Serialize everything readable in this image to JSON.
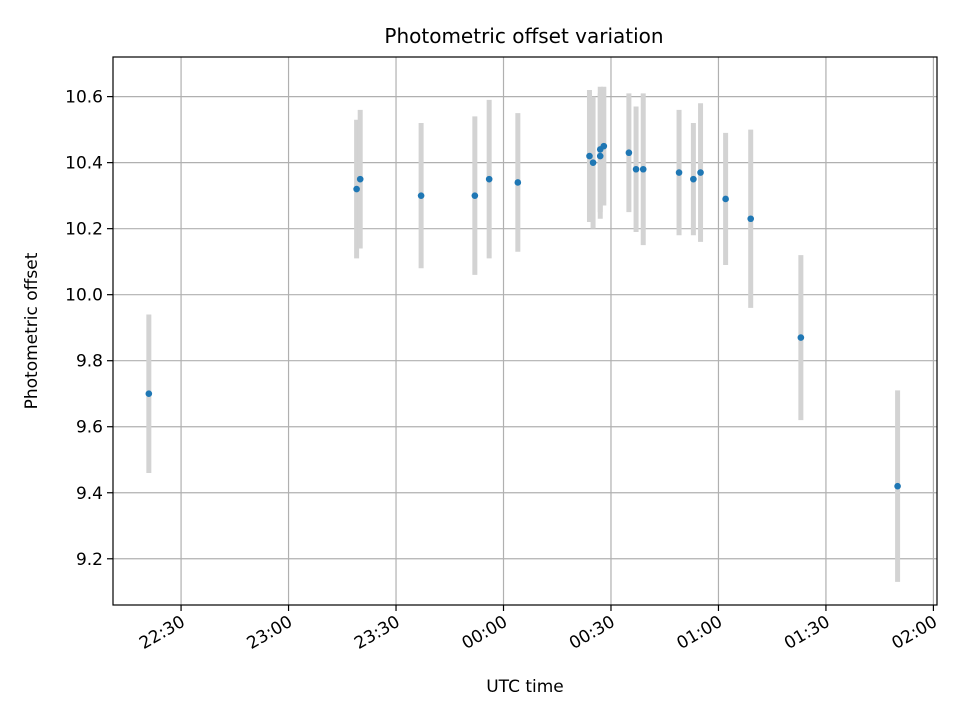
{
  "chart_data": {
    "type": "scatter",
    "title": "Photometric offset variation",
    "xlabel": "UTC time",
    "ylabel": "Photometric offset",
    "x_ticks": [
      "22:30",
      "23:00",
      "23:30",
      "00:00",
      "00:30",
      "01:00",
      "01:30",
      "02:00"
    ],
    "y_ticks": [
      "9.2",
      "9.4",
      "9.6",
      "9.8",
      "10.0",
      "10.2",
      "10.4",
      "10.6"
    ],
    "xlim": [
      "22:11",
      "02:01"
    ],
    "ylim": [
      9.06,
      10.72
    ],
    "grid": true,
    "colors": {
      "points": "#1f77b4",
      "errorbars": "#d3d3d3",
      "grid": "#b0b0b0"
    },
    "points": [
      {
        "x": "22:21",
        "y": 9.7,
        "err": 0.24
      },
      {
        "x": "23:19",
        "y": 10.32,
        "err": 0.21
      },
      {
        "x": "23:20",
        "y": 10.35,
        "err": 0.21
      },
      {
        "x": "23:37",
        "y": 10.3,
        "err": 0.22
      },
      {
        "x": "23:52",
        "y": 10.3,
        "err": 0.24
      },
      {
        "x": "23:56",
        "y": 10.35,
        "err": 0.24
      },
      {
        "x": "00:04",
        "y": 10.34,
        "err": 0.21
      },
      {
        "x": "00:24",
        "y": 10.42,
        "err": 0.2
      },
      {
        "x": "00:25",
        "y": 10.4,
        "err": 0.2
      },
      {
        "x": "00:27",
        "y": 10.42,
        "err": 0.19
      },
      {
        "x": "00:27",
        "y": 10.44,
        "err": 0.19
      },
      {
        "x": "00:28",
        "y": 10.45,
        "err": 0.18
      },
      {
        "x": "00:35",
        "y": 10.43,
        "err": 0.18
      },
      {
        "x": "00:37",
        "y": 10.38,
        "err": 0.19
      },
      {
        "x": "00:39",
        "y": 10.38,
        "err": 0.23
      },
      {
        "x": "00:49",
        "y": 10.37,
        "err": 0.19
      },
      {
        "x": "00:53",
        "y": 10.35,
        "err": 0.17
      },
      {
        "x": "00:55",
        "y": 10.37,
        "err": 0.21
      },
      {
        "x": "01:02",
        "y": 10.29,
        "err": 0.2
      },
      {
        "x": "01:09",
        "y": 10.23,
        "err": 0.27
      },
      {
        "x": "01:23",
        "y": 9.87,
        "err": 0.25
      },
      {
        "x": "01:50",
        "y": 9.42,
        "err": 0.29
      }
    ]
  }
}
